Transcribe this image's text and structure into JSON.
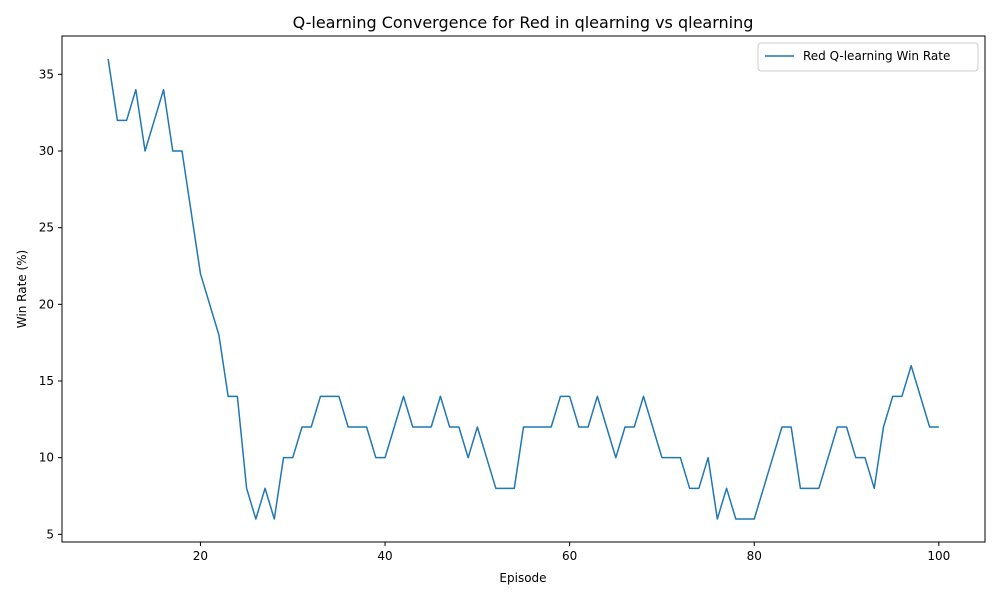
{
  "chart_data": {
    "type": "line",
    "title": "Q-learning Convergence for Red in qlearning vs qlearning",
    "xlabel": "Episode",
    "ylabel": "Win Rate (%)",
    "xlim": [
      5,
      105
    ],
    "ylim": [
      4.5,
      37.5
    ],
    "xticks": [
      20,
      40,
      60,
      80,
      100
    ],
    "yticks": [
      5,
      10,
      15,
      20,
      25,
      30,
      35
    ],
    "grid": false,
    "legend": {
      "position": "top-right"
    },
    "series": [
      {
        "name": "Red Q-learning Win Rate",
        "color": "#1f77b4",
        "x": [
          10,
          11,
          12,
          13,
          14,
          15,
          16,
          17,
          18,
          19,
          20,
          21,
          22,
          23,
          24,
          25,
          26,
          27,
          28,
          29,
          30,
          31,
          32,
          33,
          34,
          35,
          36,
          37,
          38,
          39,
          40,
          41,
          42,
          43,
          44,
          45,
          46,
          47,
          48,
          49,
          50,
          51,
          52,
          53,
          54,
          55,
          56,
          57,
          58,
          59,
          60,
          61,
          62,
          63,
          64,
          65,
          66,
          67,
          68,
          69,
          70,
          71,
          72,
          73,
          74,
          75,
          76,
          77,
          78,
          79,
          80,
          81,
          82,
          83,
          84,
          85,
          86,
          87,
          88,
          89,
          90,
          91,
          92,
          93,
          94,
          95,
          96,
          97,
          98,
          99,
          100
        ],
        "y": [
          36,
          32,
          32,
          34,
          30,
          32,
          34,
          30,
          30,
          26,
          22,
          20,
          18,
          14,
          14,
          8,
          6,
          8,
          6,
          10,
          10,
          12,
          12,
          14,
          14,
          14,
          12,
          12,
          12,
          10,
          10,
          12,
          14,
          12,
          12,
          12,
          14,
          12,
          12,
          10,
          12,
          10,
          8,
          8,
          8,
          12,
          12,
          12,
          12,
          14,
          14,
          12,
          12,
          14,
          12,
          10,
          12,
          12,
          14,
          12,
          10,
          10,
          10,
          8,
          8,
          10,
          6,
          8,
          6,
          6,
          6,
          8,
          10,
          12,
          12,
          8,
          8,
          8,
          10,
          12,
          12,
          10,
          10,
          8,
          12,
          14,
          14,
          16,
          14,
          12,
          12
        ]
      }
    ]
  }
}
